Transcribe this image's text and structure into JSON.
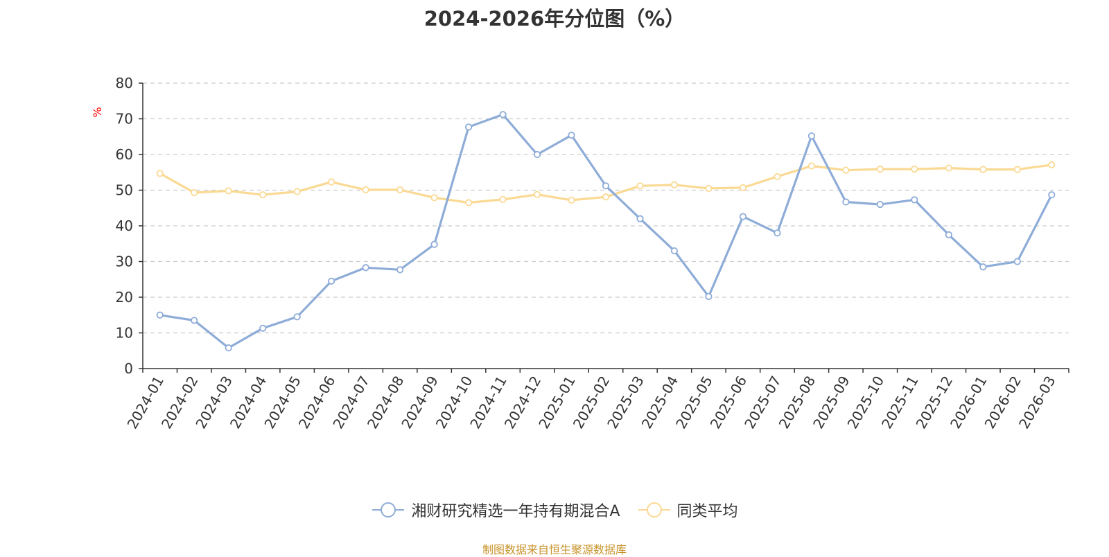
{
  "chart_data": {
    "type": "line",
    "title": "2024-2026年分位图（%）",
    "ylabel": "%",
    "xlabel": "",
    "ylim": [
      0,
      80
    ],
    "yticks": [
      0,
      10,
      20,
      30,
      40,
      50,
      60,
      70,
      80
    ],
    "grid": true,
    "legend_position": "bottom",
    "x": [
      "2024-01",
      "2024-02",
      "2024-03",
      "2024-04",
      "2024-05",
      "2024-06",
      "2024-07",
      "2024-08",
      "2024-09",
      "2024-10",
      "2024-11",
      "2024-12",
      "2025-01",
      "2025-02",
      "2025-03",
      "2025-04",
      "2025-05",
      "2025-06",
      "2025-07",
      "2025-08",
      "2025-09",
      "2025-10",
      "2025-11",
      "2025-12",
      "2026-01",
      "2026-02",
      "2026-03"
    ],
    "series": [
      {
        "name": "湘财研究精选一年持有期混合A",
        "color": "#8eacd8",
        "values": [
          15.0,
          13.5,
          5.8,
          11.3,
          14.5,
          24.5,
          28.3,
          27.7,
          34.8,
          67.7,
          71.2,
          60.0,
          65.4,
          51.2,
          42.0,
          33.0,
          20.2,
          42.6,
          38.0,
          65.2,
          46.7,
          46.0,
          47.3,
          37.5,
          28.5,
          30.0,
          48.7
        ]
      },
      {
        "name": "同类平均",
        "color": "#fad993",
        "values": [
          54.7,
          49.3,
          49.8,
          48.7,
          49.6,
          52.3,
          50.1,
          50.1,
          47.9,
          46.5,
          47.4,
          48.8,
          47.2,
          48.1,
          51.2,
          51.5,
          50.5,
          50.7,
          53.8,
          56.8,
          55.6,
          55.9,
          55.9,
          56.2,
          55.8,
          55.8,
          57.1
        ]
      }
    ]
  },
  "source_note": "制图数据来自恒生聚源数据库"
}
